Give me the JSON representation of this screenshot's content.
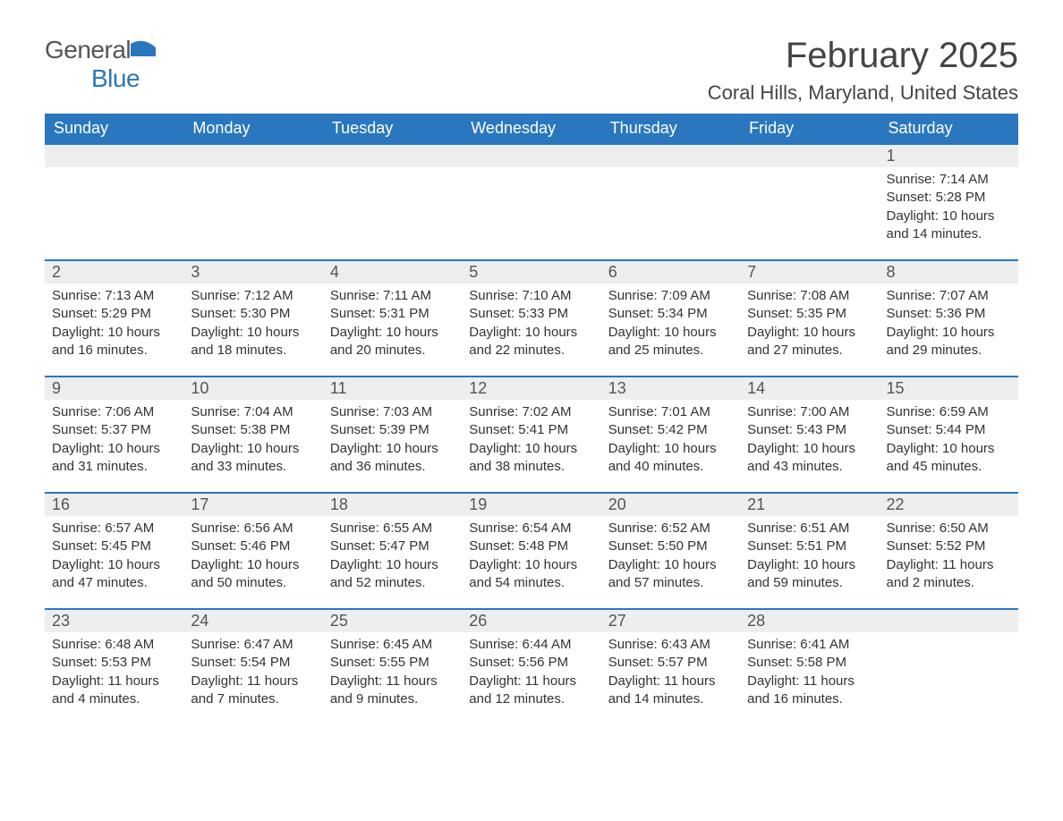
{
  "logo": {
    "text_general": "General",
    "text_blue": "Blue",
    "icon_color": "#2a77bf",
    "text_general_color": "#555555",
    "text_blue_color": "#2a77bf"
  },
  "title": "February 2025",
  "location": "Coral Hills, Maryland, United States",
  "colors": {
    "header_bg": "#2a77bf",
    "header_text": "#ffffff",
    "daynum_bg": "#eeeeee",
    "daynum_text": "#555555",
    "body_text": "#333333",
    "row_border": "#2a77bf",
    "page_bg": "#ffffff"
  },
  "typography": {
    "title_fontsize": 40,
    "location_fontsize": 22,
    "header_fontsize": 18,
    "daynum_fontsize": 18,
    "body_fontsize": 15
  },
  "calendar": {
    "columns": [
      "Sunday",
      "Monday",
      "Tuesday",
      "Wednesday",
      "Thursday",
      "Friday",
      "Saturday"
    ],
    "weeks": [
      [
        null,
        null,
        null,
        null,
        null,
        null,
        {
          "n": "1",
          "sunrise": "7:14 AM",
          "sunset": "5:28 PM",
          "daylight": "10 hours and 14 minutes."
        }
      ],
      [
        {
          "n": "2",
          "sunrise": "7:13 AM",
          "sunset": "5:29 PM",
          "daylight": "10 hours and 16 minutes."
        },
        {
          "n": "3",
          "sunrise": "7:12 AM",
          "sunset": "5:30 PM",
          "daylight": "10 hours and 18 minutes."
        },
        {
          "n": "4",
          "sunrise": "7:11 AM",
          "sunset": "5:31 PM",
          "daylight": "10 hours and 20 minutes."
        },
        {
          "n": "5",
          "sunrise": "7:10 AM",
          "sunset": "5:33 PM",
          "daylight": "10 hours and 22 minutes."
        },
        {
          "n": "6",
          "sunrise": "7:09 AM",
          "sunset": "5:34 PM",
          "daylight": "10 hours and 25 minutes."
        },
        {
          "n": "7",
          "sunrise": "7:08 AM",
          "sunset": "5:35 PM",
          "daylight": "10 hours and 27 minutes."
        },
        {
          "n": "8",
          "sunrise": "7:07 AM",
          "sunset": "5:36 PM",
          "daylight": "10 hours and 29 minutes."
        }
      ],
      [
        {
          "n": "9",
          "sunrise": "7:06 AM",
          "sunset": "5:37 PM",
          "daylight": "10 hours and 31 minutes."
        },
        {
          "n": "10",
          "sunrise": "7:04 AM",
          "sunset": "5:38 PM",
          "daylight": "10 hours and 33 minutes."
        },
        {
          "n": "11",
          "sunrise": "7:03 AM",
          "sunset": "5:39 PM",
          "daylight": "10 hours and 36 minutes."
        },
        {
          "n": "12",
          "sunrise": "7:02 AM",
          "sunset": "5:41 PM",
          "daylight": "10 hours and 38 minutes."
        },
        {
          "n": "13",
          "sunrise": "7:01 AM",
          "sunset": "5:42 PM",
          "daylight": "10 hours and 40 minutes."
        },
        {
          "n": "14",
          "sunrise": "7:00 AM",
          "sunset": "5:43 PM",
          "daylight": "10 hours and 43 minutes."
        },
        {
          "n": "15",
          "sunrise": "6:59 AM",
          "sunset": "5:44 PM",
          "daylight": "10 hours and 45 minutes."
        }
      ],
      [
        {
          "n": "16",
          "sunrise": "6:57 AM",
          "sunset": "5:45 PM",
          "daylight": "10 hours and 47 minutes."
        },
        {
          "n": "17",
          "sunrise": "6:56 AM",
          "sunset": "5:46 PM",
          "daylight": "10 hours and 50 minutes."
        },
        {
          "n": "18",
          "sunrise": "6:55 AM",
          "sunset": "5:47 PM",
          "daylight": "10 hours and 52 minutes."
        },
        {
          "n": "19",
          "sunrise": "6:54 AM",
          "sunset": "5:48 PM",
          "daylight": "10 hours and 54 minutes."
        },
        {
          "n": "20",
          "sunrise": "6:52 AM",
          "sunset": "5:50 PM",
          "daylight": "10 hours and 57 minutes."
        },
        {
          "n": "21",
          "sunrise": "6:51 AM",
          "sunset": "5:51 PM",
          "daylight": "10 hours and 59 minutes."
        },
        {
          "n": "22",
          "sunrise": "6:50 AM",
          "sunset": "5:52 PM",
          "daylight": "11 hours and 2 minutes."
        }
      ],
      [
        {
          "n": "23",
          "sunrise": "6:48 AM",
          "sunset": "5:53 PM",
          "daylight": "11 hours and 4 minutes."
        },
        {
          "n": "24",
          "sunrise": "6:47 AM",
          "sunset": "5:54 PM",
          "daylight": "11 hours and 7 minutes."
        },
        {
          "n": "25",
          "sunrise": "6:45 AM",
          "sunset": "5:55 PM",
          "daylight": "11 hours and 9 minutes."
        },
        {
          "n": "26",
          "sunrise": "6:44 AM",
          "sunset": "5:56 PM",
          "daylight": "11 hours and 12 minutes."
        },
        {
          "n": "27",
          "sunrise": "6:43 AM",
          "sunset": "5:57 PM",
          "daylight": "11 hours and 14 minutes."
        },
        {
          "n": "28",
          "sunrise": "6:41 AM",
          "sunset": "5:58 PM",
          "daylight": "11 hours and 16 minutes."
        },
        null
      ]
    ],
    "labels": {
      "sunrise": "Sunrise:",
      "sunset": "Sunset:",
      "daylight": "Daylight:"
    }
  }
}
